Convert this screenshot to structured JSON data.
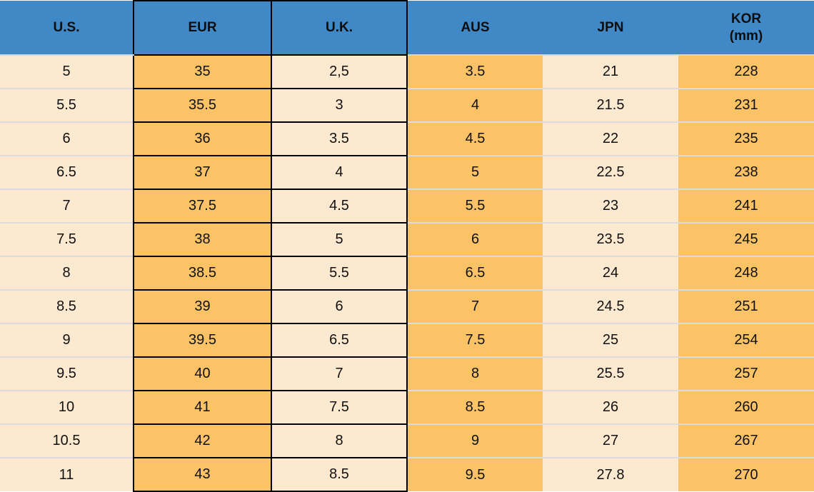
{
  "chart_data": {
    "type": "table",
    "title": "",
    "column_keys": [
      "us",
      "eur",
      "uk",
      "aus",
      "jpn",
      "kor"
    ],
    "columns": [
      {
        "label": "U.S."
      },
      {
        "label": "EUR"
      },
      {
        "label": "U.K."
      },
      {
        "label": "AUS"
      },
      {
        "label": "JPN"
      },
      {
        "label": "KOR",
        "sublabel": "(mm)"
      }
    ],
    "rows": [
      [
        "5",
        "35",
        "2,5",
        "3.5",
        "21",
        "228"
      ],
      [
        "5.5",
        "35.5",
        "3",
        "4",
        "21.5",
        "231"
      ],
      [
        "6",
        "36",
        "3.5",
        "4.5",
        "22",
        "235"
      ],
      [
        "6.5",
        "37",
        "4",
        "5",
        "22.5",
        "238"
      ],
      [
        "7",
        "37.5",
        "4.5",
        "5.5",
        "23",
        "241"
      ],
      [
        "7.5",
        "38",
        "5",
        "6",
        "23.5",
        "245"
      ],
      [
        "8",
        "38.5",
        "5.5",
        "6.5",
        "24",
        "248"
      ],
      [
        "8.5",
        "39",
        "6",
        "7",
        "24.5",
        "251"
      ],
      [
        "9",
        "39.5",
        "6.5",
        "7.5",
        "25",
        "254"
      ],
      [
        "9.5",
        "40",
        "7",
        "8",
        "25.5",
        "257"
      ],
      [
        "10",
        "41",
        "7.5",
        "8.5",
        "26",
        "260"
      ],
      [
        "10.5",
        "42",
        "8",
        "9",
        "27",
        "267"
      ],
      [
        "11",
        "43",
        "8.5",
        "9.5",
        "27.8",
        "270"
      ]
    ],
    "colors": {
      "header_bg": "#4189c6",
      "orange_bg": "#fcc266",
      "cream_bg": "#fde9cf",
      "black_border": "#000000",
      "row_separator": "#dcdcdc",
      "header_separator": "#ccd9e6",
      "text": "#111111"
    }
  }
}
